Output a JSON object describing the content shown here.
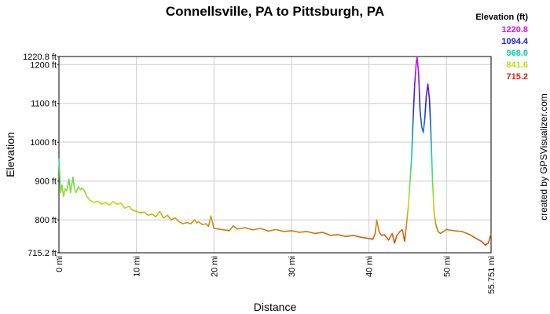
{
  "chart_data": {
    "type": "line",
    "title": "Connellsville, PA to Pittsburgh, PA",
    "xlabel": "Distance",
    "ylabel": "Elevation",
    "xlim": [
      0,
      55.751
    ],
    "ylim": [
      715.2,
      1220.8
    ],
    "grid": true,
    "x_ticks": [
      "0 mi",
      "10 mi",
      "20 mi",
      "30 mi",
      "40 mi",
      "50 mi",
      "55.751 mi"
    ],
    "x_tick_values": [
      0,
      10,
      20,
      30,
      40,
      50,
      55.751
    ],
    "y_ticks": [
      "715.2 ft",
      "800 ft",
      "900 ft",
      "1000 ft",
      "1100 ft",
      "1200 ft",
      "1220.8 ft"
    ],
    "y_tick_values": [
      715.2,
      800,
      900,
      1000,
      1100,
      1200,
      1220.8
    ],
    "legend": {
      "title": "Elevation (ft)",
      "placement": "top-right",
      "entries": [
        {
          "label": "1220.8",
          "color": "#e010e0"
        },
        {
          "label": "1094.4",
          "color": "#2020e0"
        },
        {
          "label": "968.0",
          "color": "#10d0a0"
        },
        {
          "label": "841.6",
          "color": "#b8e010"
        },
        {
          "label": "715.2",
          "color": "#e02010"
        }
      ]
    },
    "series": [
      {
        "x": [
          0,
          0.2,
          0.4,
          0.6,
          0.8,
          1.0,
          1.3,
          1.5,
          1.8,
          2.0,
          2.2,
          2.5,
          2.8,
          3.0,
          3.3,
          3.6,
          4.0,
          4.5,
          5.0,
          5.5,
          6.0,
          6.5,
          7.0,
          7.5,
          8.0,
          8.5,
          9.0,
          9.5,
          10.0,
          10.5,
          11.0,
          11.5,
          12.0,
          12.5,
          13.0,
          13.5,
          14.0,
          14.5,
          15.0,
          15.5,
          16.0,
          16.5,
          17.0,
          17.5,
          17.8,
          18.0,
          18.5,
          19.0,
          19.3,
          19.6,
          20.0,
          21.0,
          22.0,
          22.5,
          23.0,
          24.0,
          25.0,
          26.0,
          27.0,
          28.0,
          29.0,
          30.0,
          31.0,
          32.0,
          33.0,
          34.0,
          35.0,
          36.0,
          37.0,
          38.0,
          39.0,
          40.0,
          40.5,
          40.8,
          41.0,
          41.3,
          41.6,
          42.0,
          42.5,
          43.0,
          43.3,
          43.6,
          44.0,
          44.3,
          44.6,
          44.9,
          45.1,
          45.3,
          45.5,
          45.7,
          45.9,
          46.1,
          46.2,
          46.4,
          46.6,
          46.8,
          47.0,
          47.2,
          47.4,
          47.6,
          47.8,
          48.0,
          48.2,
          48.4,
          48.6,
          48.9,
          49.2,
          49.6,
          50.0,
          51.0,
          52.0,
          53.0,
          54.0,
          54.5,
          55.0,
          55.4,
          55.751
        ],
        "y": [
          958,
          870,
          890,
          860,
          880,
          875,
          905,
          870,
          910,
          880,
          870,
          885,
          878,
          882,
          875,
          860,
          850,
          845,
          848,
          840,
          845,
          838,
          847,
          840,
          843,
          830,
          835,
          825,
          822,
          818,
          820,
          812,
          815,
          808,
          822,
          805,
          812,
          800,
          805,
          795,
          790,
          793,
          790,
          800,
          792,
          795,
          788,
          790,
          783,
          810,
          778,
          775,
          772,
          785,
          776,
          780,
          774,
          778,
          771,
          775,
          770,
          772,
          768,
          770,
          765,
          768,
          760,
          762,
          757,
          760,
          755,
          752,
          750,
          765,
          800,
          770,
          760,
          762,
          748,
          765,
          740,
          760,
          770,
          775,
          745,
          800,
          840,
          900,
          960,
          1060,
          1150,
          1205,
          1220.8,
          1180,
          1080,
          1040,
          1025,
          1060,
          1120,
          1150,
          1110,
          1020,
          900,
          820,
          790,
          770,
          765,
          770,
          775,
          772,
          770,
          762,
          750,
          745,
          735,
          740,
          765
        ]
      }
    ],
    "credit": "created by GPSVisualizer.com"
  }
}
